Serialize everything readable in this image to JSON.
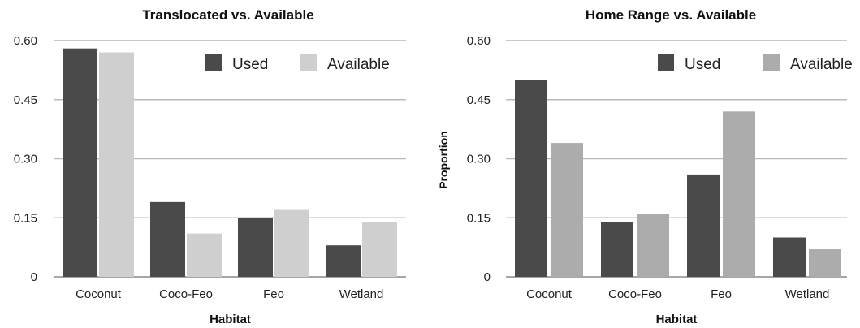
{
  "chart_data": [
    {
      "type": "bar",
      "title": "Translocated vs. Available",
      "xlabel": "Habitat",
      "ylabel": "",
      "categories": [
        "Coconut",
        "Coco-Feo",
        "Feo",
        "Wetland"
      ],
      "series": [
        {
          "name": "Used",
          "values": [
            0.58,
            0.19,
            0.15,
            0.08
          ],
          "color": "#4a4a4a"
        },
        {
          "name": "Available",
          "values": [
            0.57,
            0.11,
            0.17,
            0.14
          ],
          "color": "#cfcfcf"
        }
      ],
      "ylim": [
        0,
        0.6
      ],
      "yticks": [
        "0",
        "0.15",
        "0.30",
        "0.45",
        "0.60"
      ],
      "legend": "top-right",
      "grid": true
    },
    {
      "type": "bar",
      "title": "Home Range vs. Available",
      "xlabel": "Habitat",
      "ylabel": "Proportion",
      "categories": [
        "Coconut",
        "Coco-Feo",
        "Feo",
        "Wetland"
      ],
      "series": [
        {
          "name": "Used",
          "values": [
            0.5,
            0.14,
            0.26,
            0.1
          ],
          "color": "#4a4a4a"
        },
        {
          "name": "Available",
          "values": [
            0.34,
            0.16,
            0.42,
            0.07
          ],
          "color": "#acacac"
        }
      ],
      "ylim": [
        0,
        0.6
      ],
      "yticks": [
        "0",
        "0.15",
        "0.30",
        "0.45",
        "0.60"
      ],
      "legend": "top-right",
      "grid": true
    }
  ]
}
